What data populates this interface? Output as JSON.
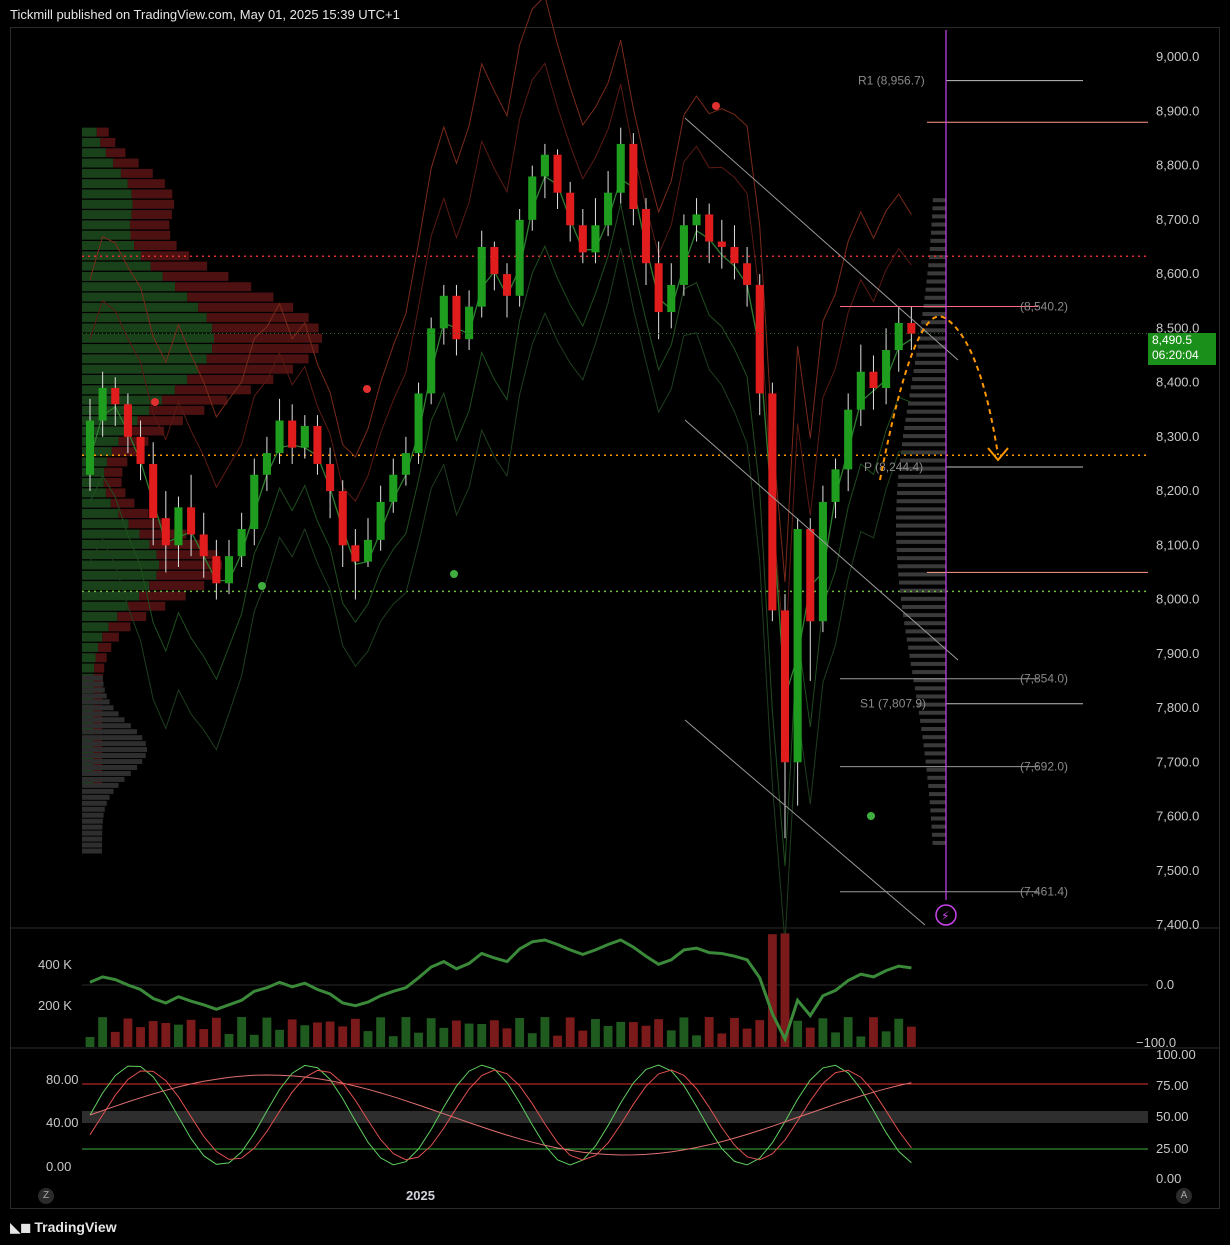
{
  "header": {
    "published": "Tickmill published on TradingView.com, May 01, 2025 15:39 UTC+1"
  },
  "footer": {
    "brand": "TradingView",
    "x_label": "2025",
    "z_btn": "Z",
    "a_btn": "A"
  },
  "price_tag": {
    "price": "8,490.5",
    "countdown": "06:20:04"
  },
  "colors": {
    "up": "#1f9d1f",
    "down": "#e01c1c",
    "bg": "#000000",
    "accent": "#ff9800",
    "cursor": "#cc44ee"
  },
  "chart_data": [
    {
      "type": "candlestick",
      "ylim": [
        7400,
        9050
      ],
      "yticks": [
        "9,000.0",
        "8,900.0",
        "8,800.0",
        "8,700.0",
        "8,600.0",
        "8,500.0",
        "8,400.0",
        "8,300.0",
        "8,200.0",
        "8,100.0",
        "8,000.0",
        "7,900.0",
        "7,800.0",
        "7,700.0",
        "7,600.0",
        "7,500.0",
        "7,400.0"
      ],
      "candles": [
        [
          8230,
          8330,
          8200,
          8370
        ],
        [
          8330,
          8390,
          8300,
          8420
        ],
        [
          8390,
          8360,
          8320,
          8410
        ],
        [
          8360,
          8300,
          8270,
          8380
        ],
        [
          8300,
          8250,
          8220,
          8330
        ],
        [
          8250,
          8150,
          8100,
          8290
        ],
        [
          8150,
          8100,
          8050,
          8200
        ],
        [
          8100,
          8170,
          8060,
          8190
        ],
        [
          8170,
          8120,
          8080,
          8230
        ],
        [
          8120,
          8080,
          8040,
          8160
        ],
        [
          8080,
          8030,
          8000,
          8110
        ],
        [
          8030,
          8080,
          8010,
          8110
        ],
        [
          8080,
          8130,
          8060,
          8160
        ],
        [
          8130,
          8230,
          8100,
          8260
        ],
        [
          8230,
          8270,
          8200,
          8300
        ],
        [
          8270,
          8330,
          8250,
          8370
        ],
        [
          8330,
          8280,
          8250,
          8360
        ],
        [
          8280,
          8320,
          8260,
          8340
        ],
        [
          8320,
          8250,
          8230,
          8340
        ],
        [
          8250,
          8200,
          8150,
          8280
        ],
        [
          8200,
          8100,
          8060,
          8220
        ],
        [
          8100,
          8070,
          8000,
          8130
        ],
        [
          8070,
          8110,
          8060,
          8150
        ],
        [
          8110,
          8180,
          8090,
          8210
        ],
        [
          8180,
          8230,
          8160,
          8260
        ],
        [
          8230,
          8270,
          8210,
          8300
        ],
        [
          8270,
          8380,
          8250,
          8400
        ],
        [
          8380,
          8500,
          8360,
          8520
        ],
        [
          8500,
          8560,
          8470,
          8580
        ],
        [
          8560,
          8480,
          8450,
          8580
        ],
        [
          8480,
          8540,
          8460,
          8570
        ],
        [
          8540,
          8650,
          8520,
          8680
        ],
        [
          8650,
          8600,
          8570,
          8660
        ],
        [
          8600,
          8560,
          8520,
          8620
        ],
        [
          8560,
          8700,
          8540,
          8720
        ],
        [
          8700,
          8780,
          8680,
          8800
        ],
        [
          8780,
          8820,
          8740,
          8840
        ],
        [
          8820,
          8750,
          8720,
          8830
        ],
        [
          8750,
          8690,
          8660,
          8770
        ],
        [
          8690,
          8640,
          8620,
          8720
        ],
        [
          8640,
          8690,
          8620,
          8740
        ],
        [
          8690,
          8750,
          8670,
          8790
        ],
        [
          8750,
          8840,
          8730,
          8870
        ],
        [
          8840,
          8720,
          8690,
          8860
        ],
        [
          8720,
          8620,
          8580,
          8740
        ],
        [
          8620,
          8530,
          8480,
          8660
        ],
        [
          8530,
          8580,
          8500,
          8620
        ],
        [
          8580,
          8690,
          8560,
          8710
        ],
        [
          8690,
          8710,
          8660,
          8740
        ],
        [
          8710,
          8660,
          8620,
          8730
        ],
        [
          8660,
          8650,
          8610,
          8700
        ],
        [
          8650,
          8620,
          8590,
          8690
        ],
        [
          8620,
          8580,
          8540,
          8650
        ],
        [
          8580,
          8380,
          8340,
          8600
        ],
        [
          8380,
          7980,
          7960,
          8400
        ],
        [
          7980,
          7700,
          7560,
          8010
        ],
        [
          7700,
          8130,
          7620,
          8150
        ],
        [
          8130,
          7960,
          7850,
          8150
        ],
        [
          7960,
          8180,
          7940,
          8210
        ],
        [
          8180,
          8240,
          8150,
          8260
        ],
        [
          8240,
          8350,
          8200,
          8380
        ],
        [
          8350,
          8420,
          8320,
          8470
        ],
        [
          8420,
          8390,
          8350,
          8450
        ],
        [
          8390,
          8460,
          8360,
          8500
        ],
        [
          8460,
          8510,
          8420,
          8540
        ],
        [
          8510,
          8490,
          8460,
          8540
        ]
      ],
      "lines": [
        {
          "name": "R1",
          "value": 8956.7,
          "label": "R1 (8,956.7)"
        },
        {
          "name": "P",
          "value": 8244.4,
          "label": "P (8,244.4)"
        },
        {
          "name": "S1",
          "value": 7807.9,
          "label": "S1 (7,807.9)"
        }
      ],
      "extra_levels": [
        {
          "value": 8540.2,
          "label": "(8,540.2)"
        },
        {
          "value": 7854.0,
          "label": "(7,854.0)"
        },
        {
          "value": 7692.0,
          "label": "(7,692.0)"
        },
        {
          "value": 7461.4,
          "label": "(7,461.4)"
        }
      ],
      "dotted_levels": [
        8633,
        8266,
        8015
      ]
    },
    {
      "type": "bar",
      "yticks_left": [
        "400 K",
        "200 K"
      ],
      "yticks_right": [
        "0.0",
        "−100.0"
      ]
    },
    {
      "type": "line",
      "yticks_left": [
        "80.00",
        "40.00",
        "0.00"
      ],
      "yticks_right": [
        "100.00",
        "75.00",
        "50.00",
        "25.00",
        "0.00"
      ]
    }
  ]
}
